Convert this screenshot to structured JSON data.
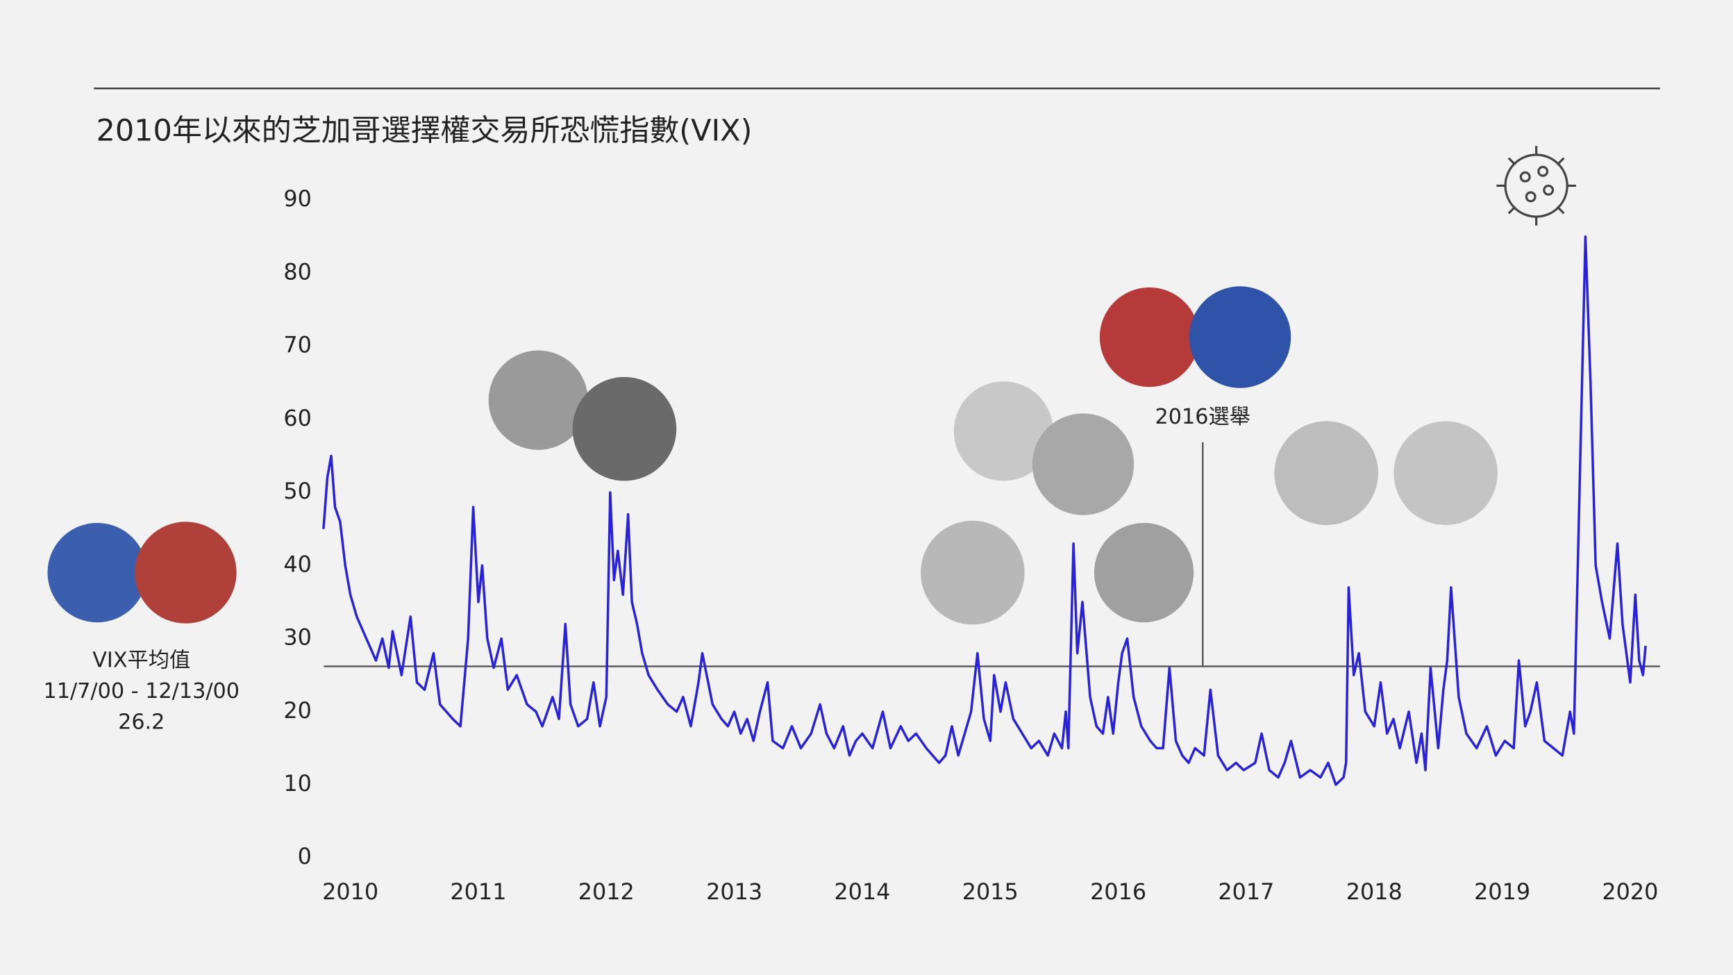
{
  "chart_data": {
    "type": "line",
    "title": "2010年以來的芝加哥選擇權交易所恐慌指數(VIX)",
    "color": "#2a22d8",
    "xlim": [
      2009.7,
      2020.3
    ],
    "xticks": [
      2010,
      2011,
      2012,
      2013,
      2014,
      2015,
      2016,
      2017,
      2018,
      2019,
      2020
    ],
    "ylim": [
      0,
      90
    ],
    "yticks": [
      0,
      10,
      20,
      30,
      40,
      50,
      60,
      70,
      80,
      90
    ],
    "x": [
      2009.79,
      2009.82,
      2009.85,
      2009.88,
      2009.92,
      2009.96,
      2010.0,
      2010.05,
      2010.1,
      2010.15,
      2010.2,
      2010.25,
      2010.3,
      2010.33,
      2010.4,
      2010.47,
      2010.52,
      2010.58,
      2010.65,
      2010.7,
      2010.8,
      2010.86,
      2010.92,
      2010.96,
      2011.0,
      2011.03,
      2011.07,
      2011.12,
      2011.18,
      2011.23,
      2011.3,
      2011.38,
      2011.45,
      2011.5,
      2011.58,
      2011.63,
      2011.68,
      2011.72,
      2011.78,
      2011.85,
      2011.9,
      2011.95,
      2012.0,
      2012.03,
      2012.06,
      2012.09,
      2012.13,
      2012.17,
      2012.2,
      2012.24,
      2012.28,
      2012.33,
      2012.4,
      2012.48,
      2012.55,
      2012.6,
      2012.66,
      2012.72,
      2012.75,
      2012.83,
      2012.9,
      2012.95,
      2013.0,
      2013.05,
      2013.1,
      2013.15,
      2013.2,
      2013.26,
      2013.3,
      2013.38,
      2013.45,
      2013.52,
      2013.6,
      2013.67,
      2013.72,
      2013.78,
      2013.85,
      2013.9,
      2013.95,
      2014.0,
      2014.08,
      2014.16,
      2014.22,
      2014.3,
      2014.36,
      2014.42,
      2014.5,
      2014.6,
      2014.65,
      2014.7,
      2014.75,
      2014.8,
      2014.85,
      2014.9,
      2014.95,
      2015.0,
      2015.03,
      2015.08,
      2015.12,
      2015.18,
      2015.25,
      2015.32,
      2015.38,
      2015.45,
      2015.5,
      2015.56,
      2015.59,
      2015.61,
      2015.65,
      2015.68,
      2015.72,
      2015.78,
      2015.83,
      2015.88,
      2015.92,
      2015.96,
      2016.0,
      2016.03,
      2016.07,
      2016.12,
      2016.18,
      2016.25,
      2016.3,
      2016.35,
      2016.4,
      2016.45,
      2016.5,
      2016.55,
      2016.6,
      2016.67,
      2016.72,
      2016.78,
      2016.85,
      2016.92,
      2016.98,
      2017.07,
      2017.12,
      2017.18,
      2017.25,
      2017.3,
      2017.35,
      2017.42,
      2017.5,
      2017.58,
      2017.64,
      2017.7,
      2017.76,
      2017.78,
      2017.8,
      2017.84,
      2017.88,
      2017.93,
      2018.0,
      2018.05,
      2018.1,
      2018.15,
      2018.2,
      2018.27,
      2018.33,
      2018.37,
      2018.4,
      2018.44,
      2018.5,
      2018.54,
      2018.57,
      2018.6,
      2018.66,
      2018.72,
      2018.8,
      2018.88,
      2018.95,
      2019.02,
      2019.09,
      2019.13,
      2019.18,
      2019.22,
      2019.27,
      2019.33,
      2019.4,
      2019.47,
      2019.53,
      2019.56,
      2019.65,
      2019.69,
      2019.73,
      2019.78,
      2019.84,
      2019.9,
      2019.94,
      2019.97,
      2020.0,
      2020.04,
      2020.07,
      2020.1,
      2020.12
    ],
    "values": [
      45,
      52,
      55,
      48,
      46,
      40,
      36,
      33,
      31,
      29,
      27,
      30,
      26,
      31,
      25,
      33,
      24,
      23,
      28,
      21,
      19,
      18,
      30,
      48,
      35,
      40,
      30,
      26,
      30,
      23,
      25,
      21,
      20,
      18,
      22,
      19,
      32,
      21,
      18,
      19,
      24,
      18,
      22,
      50,
      38,
      42,
      36,
      47,
      35,
      32,
      28,
      25,
      23,
      21,
      20,
      22,
      18,
      24,
      28,
      21,
      19,
      18,
      20,
      17,
      19,
      16,
      20,
      24,
      16,
      15,
      18,
      15,
      17,
      21,
      17,
      15,
      18,
      14,
      16,
      17,
      15,
      20,
      15,
      18,
      16,
      17,
      15,
      13,
      14,
      18,
      14,
      17,
      20,
      28,
      19,
      16,
      25,
      20,
      24,
      19,
      17,
      15,
      16,
      14,
      17,
      15,
      20,
      15,
      43,
      28,
      35,
      22,
      18,
      17,
      22,
      17,
      24,
      28,
      30,
      22,
      18,
      16,
      15,
      15,
      26,
      16,
      14,
      13,
      15,
      14,
      23,
      14,
      12,
      13,
      12,
      13,
      17,
      12,
      11,
      13,
      16,
      11,
      12,
      11,
      13,
      10,
      11,
      13,
      37,
      25,
      28,
      20,
      18,
      24,
      17,
      19,
      15,
      20,
      13,
      17,
      12,
      26,
      15,
      23,
      27,
      37,
      22,
      17,
      15,
      18,
      14,
      16,
      15,
      27,
      18,
      20,
      24,
      16,
      15,
      14,
      20,
      17,
      85,
      65,
      40,
      35,
      30,
      43,
      32,
      28,
      24,
      36,
      27,
      25,
      29
    ],
    "average": {
      "label": "VIX平均值",
      "period": "11/7/00 - 12/13/00",
      "value": 26.2
    },
    "annotations": [
      {
        "text": "2016選舉",
        "x": 2016.66
      }
    ]
  }
}
